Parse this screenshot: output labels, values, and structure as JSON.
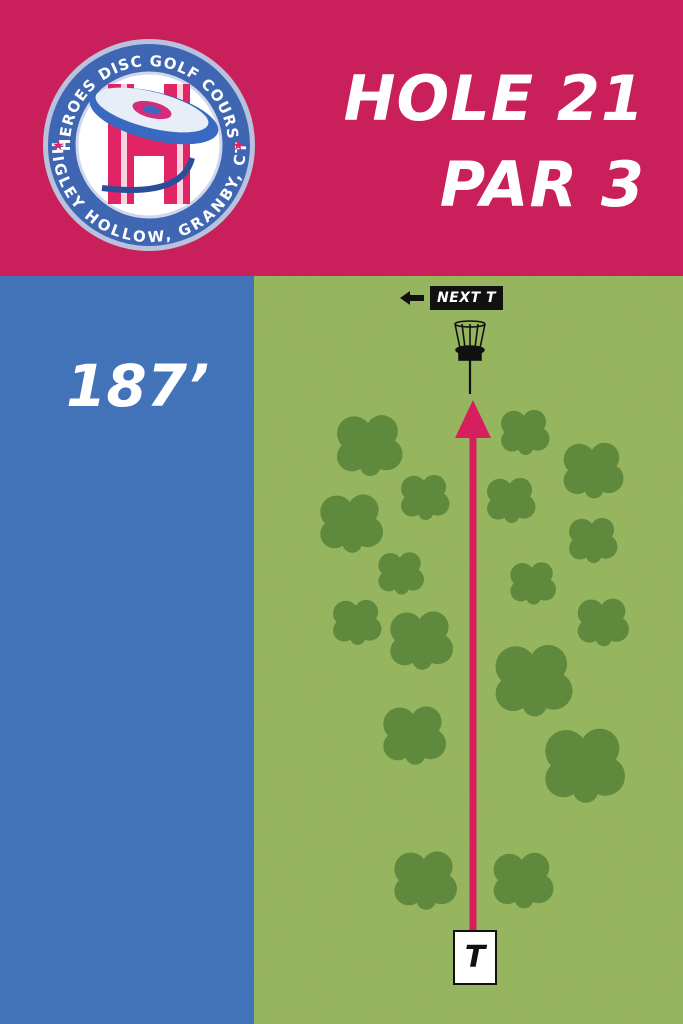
{
  "logo": {
    "top_text": "HEROES DISC GOLF COURSE",
    "bottom_text": "HIGLEY HOLLOW, GRANBY, CT",
    "letter": "H"
  },
  "hole": {
    "line1": "HOLE 21",
    "line2": "PAR 3"
  },
  "distance": "187’",
  "next_tee": "NEXT T",
  "tee_label": "T",
  "colors": {
    "header": "#c91f5a",
    "side_panel": "#4272b8",
    "fairway": "#93b25a",
    "trees": "#5f8a3e",
    "flight_line": "#d81f5e"
  }
}
